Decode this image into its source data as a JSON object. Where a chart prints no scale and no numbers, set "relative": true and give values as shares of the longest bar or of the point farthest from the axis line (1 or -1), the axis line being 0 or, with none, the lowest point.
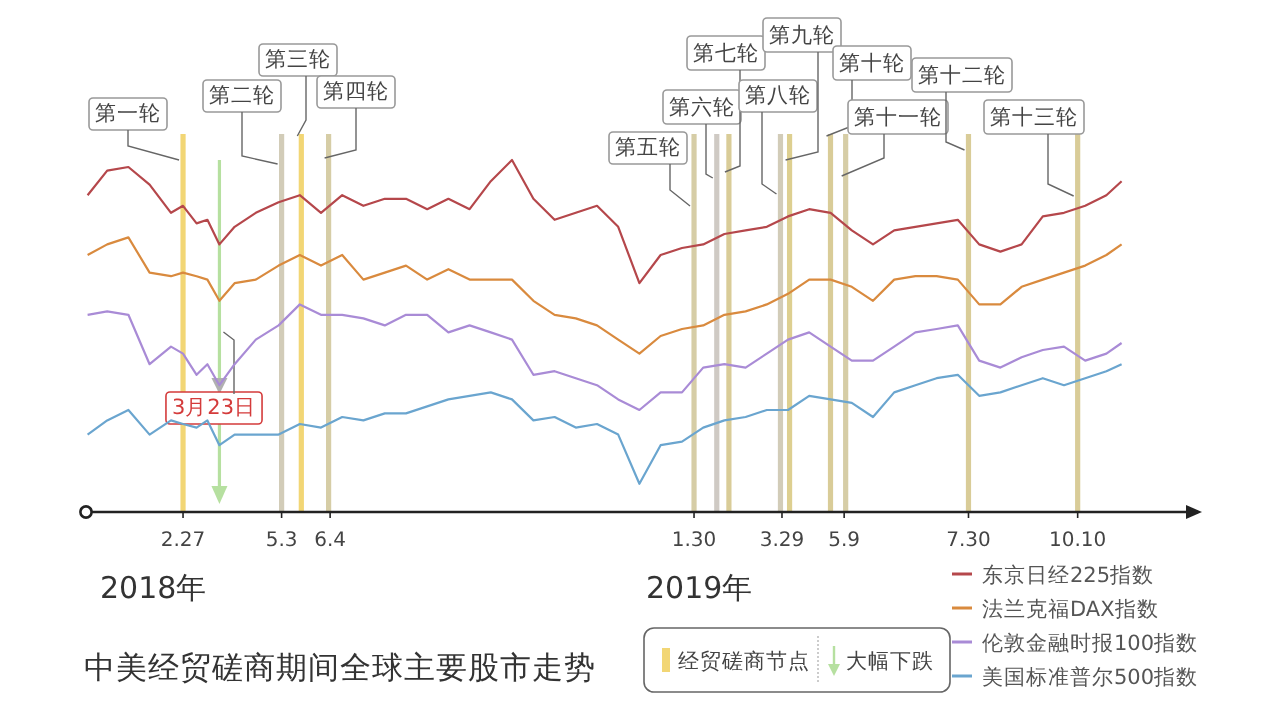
{
  "chart_data": {
    "type": "line",
    "relative": true,
    "title": "中美经贸磋商期间全球主要股市走势",
    "legend": "bottom right",
    "xlim": [
      "2017-12-25",
      "2019-12-31"
    ],
    "xticks": [
      {
        "value": "2018-02-27",
        "label": "2.27"
      },
      {
        "value": "2018-05-03",
        "label": "5.3"
      },
      {
        "value": "2018-06-04",
        "label": "6.4"
      },
      {
        "value": "2019-01-30",
        "label": "1.30"
      },
      {
        "value": "2019-03-29",
        "label": "3.29"
      },
      {
        "value": "2019-05-09",
        "label": "5.9"
      },
      {
        "value": "2019-07-30",
        "label": "7.30"
      },
      {
        "value": "2019-10-10",
        "label": "10.10"
      }
    ],
    "x": [
      "2017-12-26",
      "2018-01-08",
      "2018-01-22",
      "2018-02-05",
      "2018-02-19",
      "2018-02-27",
      "2018-03-08",
      "2018-03-15",
      "2018-03-23",
      "2018-04-02",
      "2018-04-16",
      "2018-05-01",
      "2018-05-15",
      "2018-05-29",
      "2018-06-12",
      "2018-06-26",
      "2018-07-10",
      "2018-07-24",
      "2018-08-07",
      "2018-08-21",
      "2018-09-04",
      "2018-09-18",
      "2018-10-02",
      "2018-10-16",
      "2018-10-30",
      "2018-11-13",
      "2018-11-27",
      "2018-12-11",
      "2018-12-25",
      "2019-01-08",
      "2019-01-22",
      "2019-02-05",
      "2019-02-19",
      "2019-03-05",
      "2019-03-19",
      "2019-04-02",
      "2019-04-16",
      "2019-04-30",
      "2019-05-14",
      "2019-05-28",
      "2019-06-11",
      "2019-06-25",
      "2019-07-09",
      "2019-07-23",
      "2019-08-06",
      "2019-08-20",
      "2019-09-03",
      "2019-09-17",
      "2019-10-01",
      "2019-10-15",
      "2019-10-29",
      "2019-11-08"
    ],
    "series": [
      {
        "name": "东京日经225指数",
        "color": "#b5474b",
        "values": [
          0.9,
          0.97,
          0.98,
          0.93,
          0.85,
          0.87,
          0.82,
          0.83,
          0.76,
          0.81,
          0.85,
          0.88,
          0.9,
          0.85,
          0.9,
          0.87,
          0.89,
          0.89,
          0.86,
          0.89,
          0.86,
          0.94,
          1,
          0.89,
          0.83,
          0.85,
          0.87,
          0.81,
          0.65,
          0.73,
          0.75,
          0.76,
          0.79,
          0.8,
          0.81,
          0.84,
          0.86,
          0.85,
          0.8,
          0.76,
          0.8,
          0.81,
          0.82,
          0.83,
          0.76,
          0.74,
          0.76,
          0.84,
          0.85,
          0.87,
          0.9,
          0.94
        ]
      },
      {
        "name": "法兰克福DAX指数",
        "color": "#d98a3e",
        "values": [
          0.73,
          0.76,
          0.78,
          0.68,
          0.67,
          0.68,
          0.67,
          0.66,
          0.6,
          0.65,
          0.66,
          0.7,
          0.73,
          0.7,
          0.73,
          0.66,
          0.68,
          0.7,
          0.66,
          0.69,
          0.66,
          0.66,
          0.66,
          0.6,
          0.56,
          0.55,
          0.53,
          0.49,
          0.45,
          0.5,
          0.52,
          0.53,
          0.56,
          0.57,
          0.59,
          0.62,
          0.66,
          0.66,
          0.64,
          0.6,
          0.66,
          0.67,
          0.67,
          0.66,
          0.59,
          0.59,
          0.64,
          0.66,
          0.68,
          0.7,
          0.73,
          0.76
        ]
      },
      {
        "name": "伦敦金融时报100指数",
        "color": "#a98bd6",
        "values": [
          0.56,
          0.57,
          0.56,
          0.42,
          0.47,
          0.45,
          0.39,
          0.42,
          0.36,
          0.42,
          0.49,
          0.53,
          0.59,
          0.56,
          0.56,
          0.55,
          0.53,
          0.56,
          0.56,
          0.51,
          0.53,
          0.51,
          0.49,
          0.39,
          0.4,
          0.38,
          0.36,
          0.32,
          0.29,
          0.34,
          0.34,
          0.41,
          0.42,
          0.41,
          0.45,
          0.49,
          0.51,
          0.47,
          0.43,
          0.43,
          0.47,
          0.51,
          0.52,
          0.53,
          0.43,
          0.41,
          0.44,
          0.46,
          0.47,
          0.43,
          0.45,
          0.48
        ]
      },
      {
        "name": "美国标准普尔500指数",
        "color": "#6aa5cf",
        "values": [
          0.22,
          0.26,
          0.29,
          0.22,
          0.26,
          0.25,
          0.24,
          0.26,
          0.19,
          0.22,
          0.22,
          0.22,
          0.25,
          0.24,
          0.27,
          0.26,
          0.28,
          0.28,
          0.3,
          0.32,
          0.33,
          0.34,
          0.32,
          0.26,
          0.27,
          0.24,
          0.25,
          0.22,
          0.08,
          0.19,
          0.2,
          0.24,
          0.26,
          0.27,
          0.29,
          0.29,
          0.33,
          0.32,
          0.31,
          0.27,
          0.34,
          0.36,
          0.38,
          0.39,
          0.33,
          0.34,
          0.36,
          0.38,
          0.36,
          0.38,
          0.4,
          0.42
        ]
      }
    ],
    "ref_lines": [
      {
        "axis": "x",
        "value": "2018-02-27",
        "label": "第一轮",
        "color": "#f2d675"
      },
      {
        "axis": "x",
        "value": "2018-03-23",
        "label": "3月23日",
        "color": "#b6e0a0"
      },
      {
        "axis": "x",
        "value": "2018-05-03",
        "label": "第二轮",
        "color": "#d2ccb8"
      },
      {
        "axis": "x",
        "value": "2018-05-16",
        "label": "第三轮",
        "color": "#f2d675"
      },
      {
        "axis": "x",
        "value": "2018-06-03",
        "label": "第四轮",
        "color": "#d6cda6"
      },
      {
        "axis": "x",
        "value": "2019-01-30",
        "label": "第五轮",
        "color": "#d6cda6"
      },
      {
        "axis": "x",
        "value": "2019-02-14",
        "label": "第六轮",
        "color": "#cfcac4"
      },
      {
        "axis": "x",
        "value": "2019-02-22",
        "label": "第七轮",
        "color": "#d9cc98"
      },
      {
        "axis": "x",
        "value": "2019-03-28",
        "label": "第八轮",
        "color": "#d2ccb8"
      },
      {
        "axis": "x",
        "value": "2019-04-03",
        "label": "第九轮",
        "color": "#ddcf90"
      },
      {
        "axis": "x",
        "value": "2019-04-30",
        "label": "第十轮",
        "color": "#d9cc98"
      },
      {
        "axis": "x",
        "value": "2019-05-10",
        "label": "第十一轮",
        "color": "#d6cda6"
      },
      {
        "axis": "x",
        "value": "2019-07-30",
        "label": "第十二轮",
        "color": "#d9cc98"
      },
      {
        "axis": "x",
        "value": "2019-10-10",
        "label": "第十三轮",
        "color": "#d9cc98"
      }
    ],
    "annotations": [
      "2018年",
      "2019年",
      "经贸磋商节点",
      "大幅下跌"
    ]
  }
}
